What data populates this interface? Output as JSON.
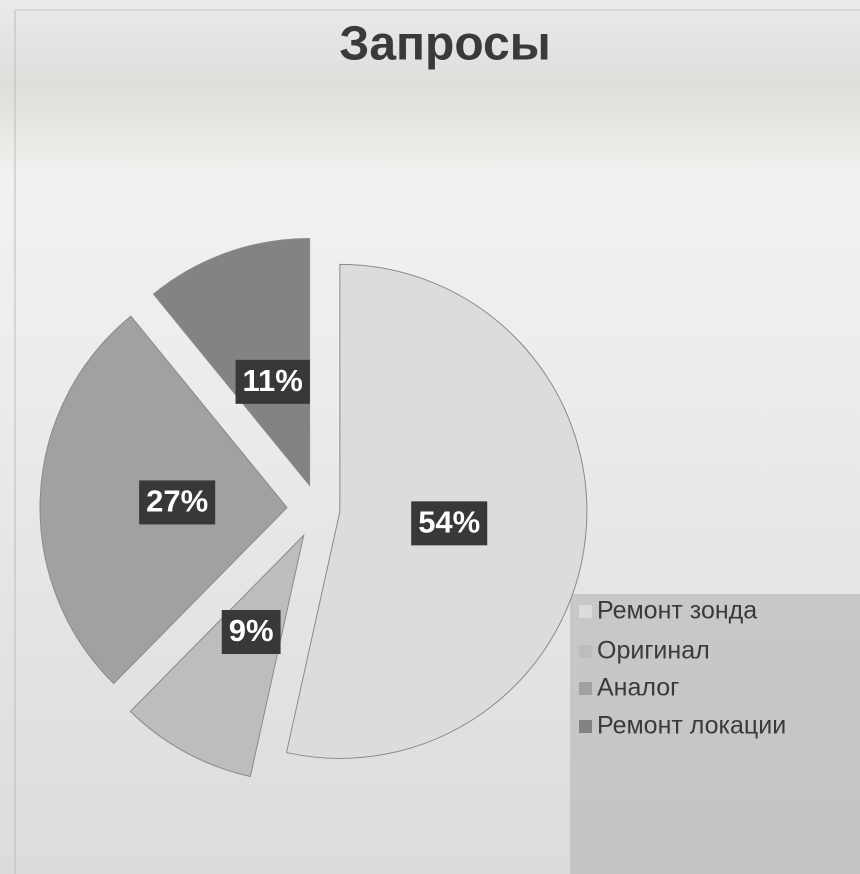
{
  "chart_data": {
    "type": "pie",
    "title": "Запросы",
    "categories": [
      "Ремонт зонда",
      "Оригинал",
      "Аналог",
      "Ремонт локации"
    ],
    "values": [
      54,
      9,
      27,
      11
    ],
    "value_labels": [
      "54%",
      "9%",
      "27%",
      "11%"
    ],
    "colors": [
      "#dcdcdc",
      "#bdbdbd",
      "#a1a1a1",
      "#838383"
    ],
    "legend": "right"
  }
}
